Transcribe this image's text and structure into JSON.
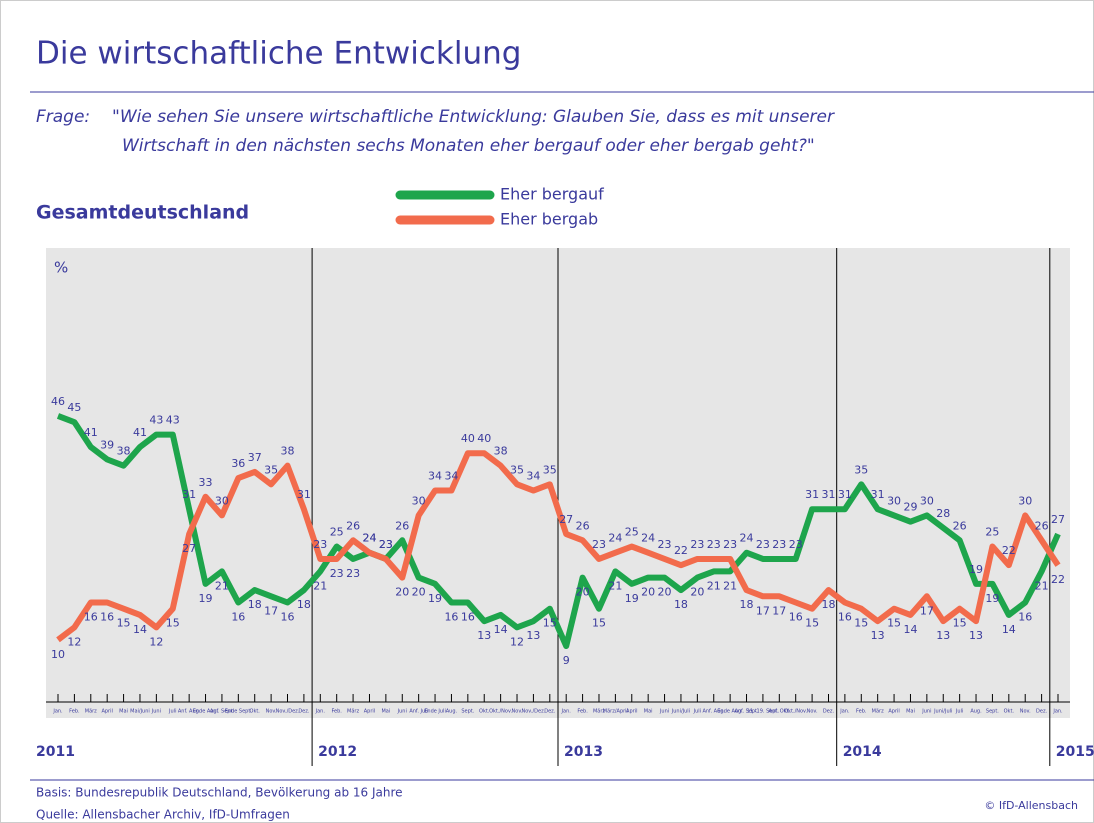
{
  "chart_data": {
    "type": "line",
    "title": "Die wirtschaftliche Entwicklung",
    "question_label": "Frage:",
    "question": [
      "\"Wie sehen Sie unsere wirtschaftliche Entwicklung: Glauben Sie, dass es mit unserer",
      "Wirtschaft in den nächsten sechs Monaten eher bergauf oder eher bergab geht?\""
    ],
    "subtitle": "Gesamtdeutschland",
    "y_label": "%",
    "categories": [
      "Jan.",
      "Feb.",
      "März",
      "April",
      "Mai",
      "Mai/Juni",
      "Juni",
      "Juli",
      "Anf. Aug.",
      "Ende Aug.",
      "Anf. Sept.",
      "Ende Sept.",
      "Okt.",
      "Nov.",
      "Nov./Dez.",
      "Dez.",
      "Jan.",
      "Feb.",
      "März",
      "April",
      "Mai",
      "Juni",
      "Anf. Juli",
      "Ende Juli",
      "Aug.",
      "Sept.",
      "Okt.",
      "Okt./Nov.",
      "Nov.",
      "Nov./Dez.",
      "Dez.",
      "Jan.",
      "Feb.",
      "März",
      "März/April",
      "April",
      "Mai",
      "Juni",
      "Juni/Juli",
      "Juli",
      "Anf. Aug.",
      "Ende Aug.",
      "Anf. Sept.",
      "11.-19. Sept.",
      "Anf. Okt.",
      "Okt./Nov.",
      "Nov.",
      "Dez.",
      "Jan.",
      "Feb.",
      "März",
      "April",
      "Mai",
      "Juni",
      "Juni/Juli",
      "Juli",
      "Aug.",
      "Sept.",
      "Okt.",
      "Nov.",
      "Dez.",
      "Jan."
    ],
    "years": [
      {
        "label": "2011",
        "start": 0
      },
      {
        "label": "2012",
        "start": 16
      },
      {
        "label": "2013",
        "start": 31
      },
      {
        "label": "2014",
        "start": 48
      },
      {
        "label": "2015",
        "start": 61
      }
    ],
    "series": [
      {
        "name": "Eher bergauf",
        "color": "#1ea54c",
        "values": [
          46,
          45,
          41,
          39,
          38,
          41,
          43,
          43,
          31,
          19,
          21,
          16,
          18,
          17,
          16,
          18,
          21,
          25,
          23,
          24,
          23,
          26,
          20,
          19,
          16,
          16,
          13,
          14,
          12,
          13,
          15,
          9,
          20,
          15,
          21,
          19,
          20,
          20,
          18,
          20,
          21,
          21,
          24,
          23,
          23,
          23,
          31,
          31,
          31,
          35,
          31,
          30,
          29,
          30,
          28,
          26,
          19,
          19,
          14,
          16,
          21,
          27
        ]
      },
      {
        "name": "Eher bergab",
        "color": "#f26b4c",
        "values": [
          10,
          12,
          16,
          16,
          15,
          14,
          12,
          15,
          27,
          33,
          30,
          36,
          37,
          35,
          38,
          31,
          23,
          23,
          26,
          24,
          23,
          20,
          30,
          34,
          34,
          40,
          40,
          38,
          35,
          34,
          35,
          27,
          26,
          23,
          24,
          25,
          24,
          23,
          22,
          23,
          23,
          23,
          18,
          17,
          17,
          16,
          15,
          18,
          16,
          15,
          13,
          15,
          14,
          17,
          13,
          15,
          13,
          25,
          22,
          30,
          26,
          22
        ]
      }
    ],
    "ylim": [
      0,
      73
    ],
    "footer": [
      "Basis: Bundesrepublik Deutschland, Bevölkerung ab 16 Jahre",
      "Quelle: Allensbacher Archiv, IfD-Umfragen"
    ],
    "copyright": "© IfD-Allensbach"
  }
}
